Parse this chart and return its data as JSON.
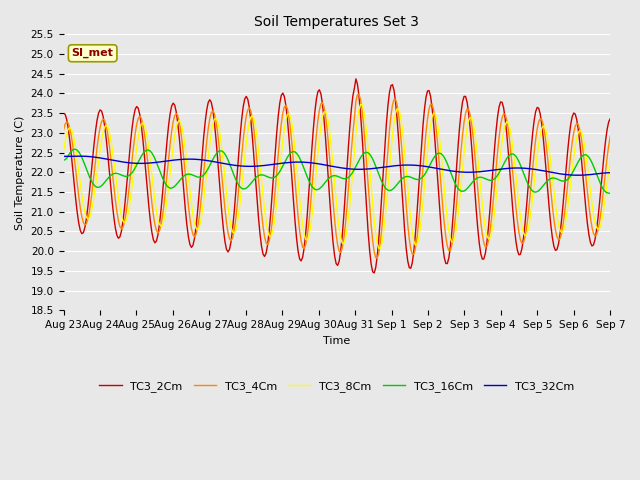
{
  "title": "Soil Temperatures Set 3",
  "xlabel": "Time",
  "ylabel": "Soil Temperature (C)",
  "ylim": [
    18.5,
    25.5
  ],
  "yticks": [
    18.5,
    19.0,
    19.5,
    20.0,
    20.5,
    21.0,
    21.5,
    22.0,
    22.5,
    23.0,
    23.5,
    24.0,
    24.5,
    25.0,
    25.5
  ],
  "xtick_labels": [
    "Aug 23",
    "Aug 24",
    "Aug 25",
    "Aug 26",
    "Aug 27",
    "Aug 28",
    "Aug 29",
    "Aug 30",
    "Aug 31",
    "Sep 1",
    "Sep 2",
    "Sep 3",
    "Sep 4",
    "Sep 5",
    "Sep 6",
    "Sep 7"
  ],
  "legend_labels": [
    "TC3_2Cm",
    "TC3_4Cm",
    "TC3_8Cm",
    "TC3_16Cm",
    "TC3_32Cm"
  ],
  "line_colors": [
    "#cc0000",
    "#ff8800",
    "#ffff00",
    "#00cc00",
    "#0000cc"
  ],
  "bg_color": "#e8e8e8",
  "annotation_text": "SI_met",
  "annotation_bg": "#ffffcc",
  "annotation_border": "#999900",
  "annotation_text_color": "#880000",
  "figsize": [
    6.4,
    4.8
  ],
  "dpi": 100
}
